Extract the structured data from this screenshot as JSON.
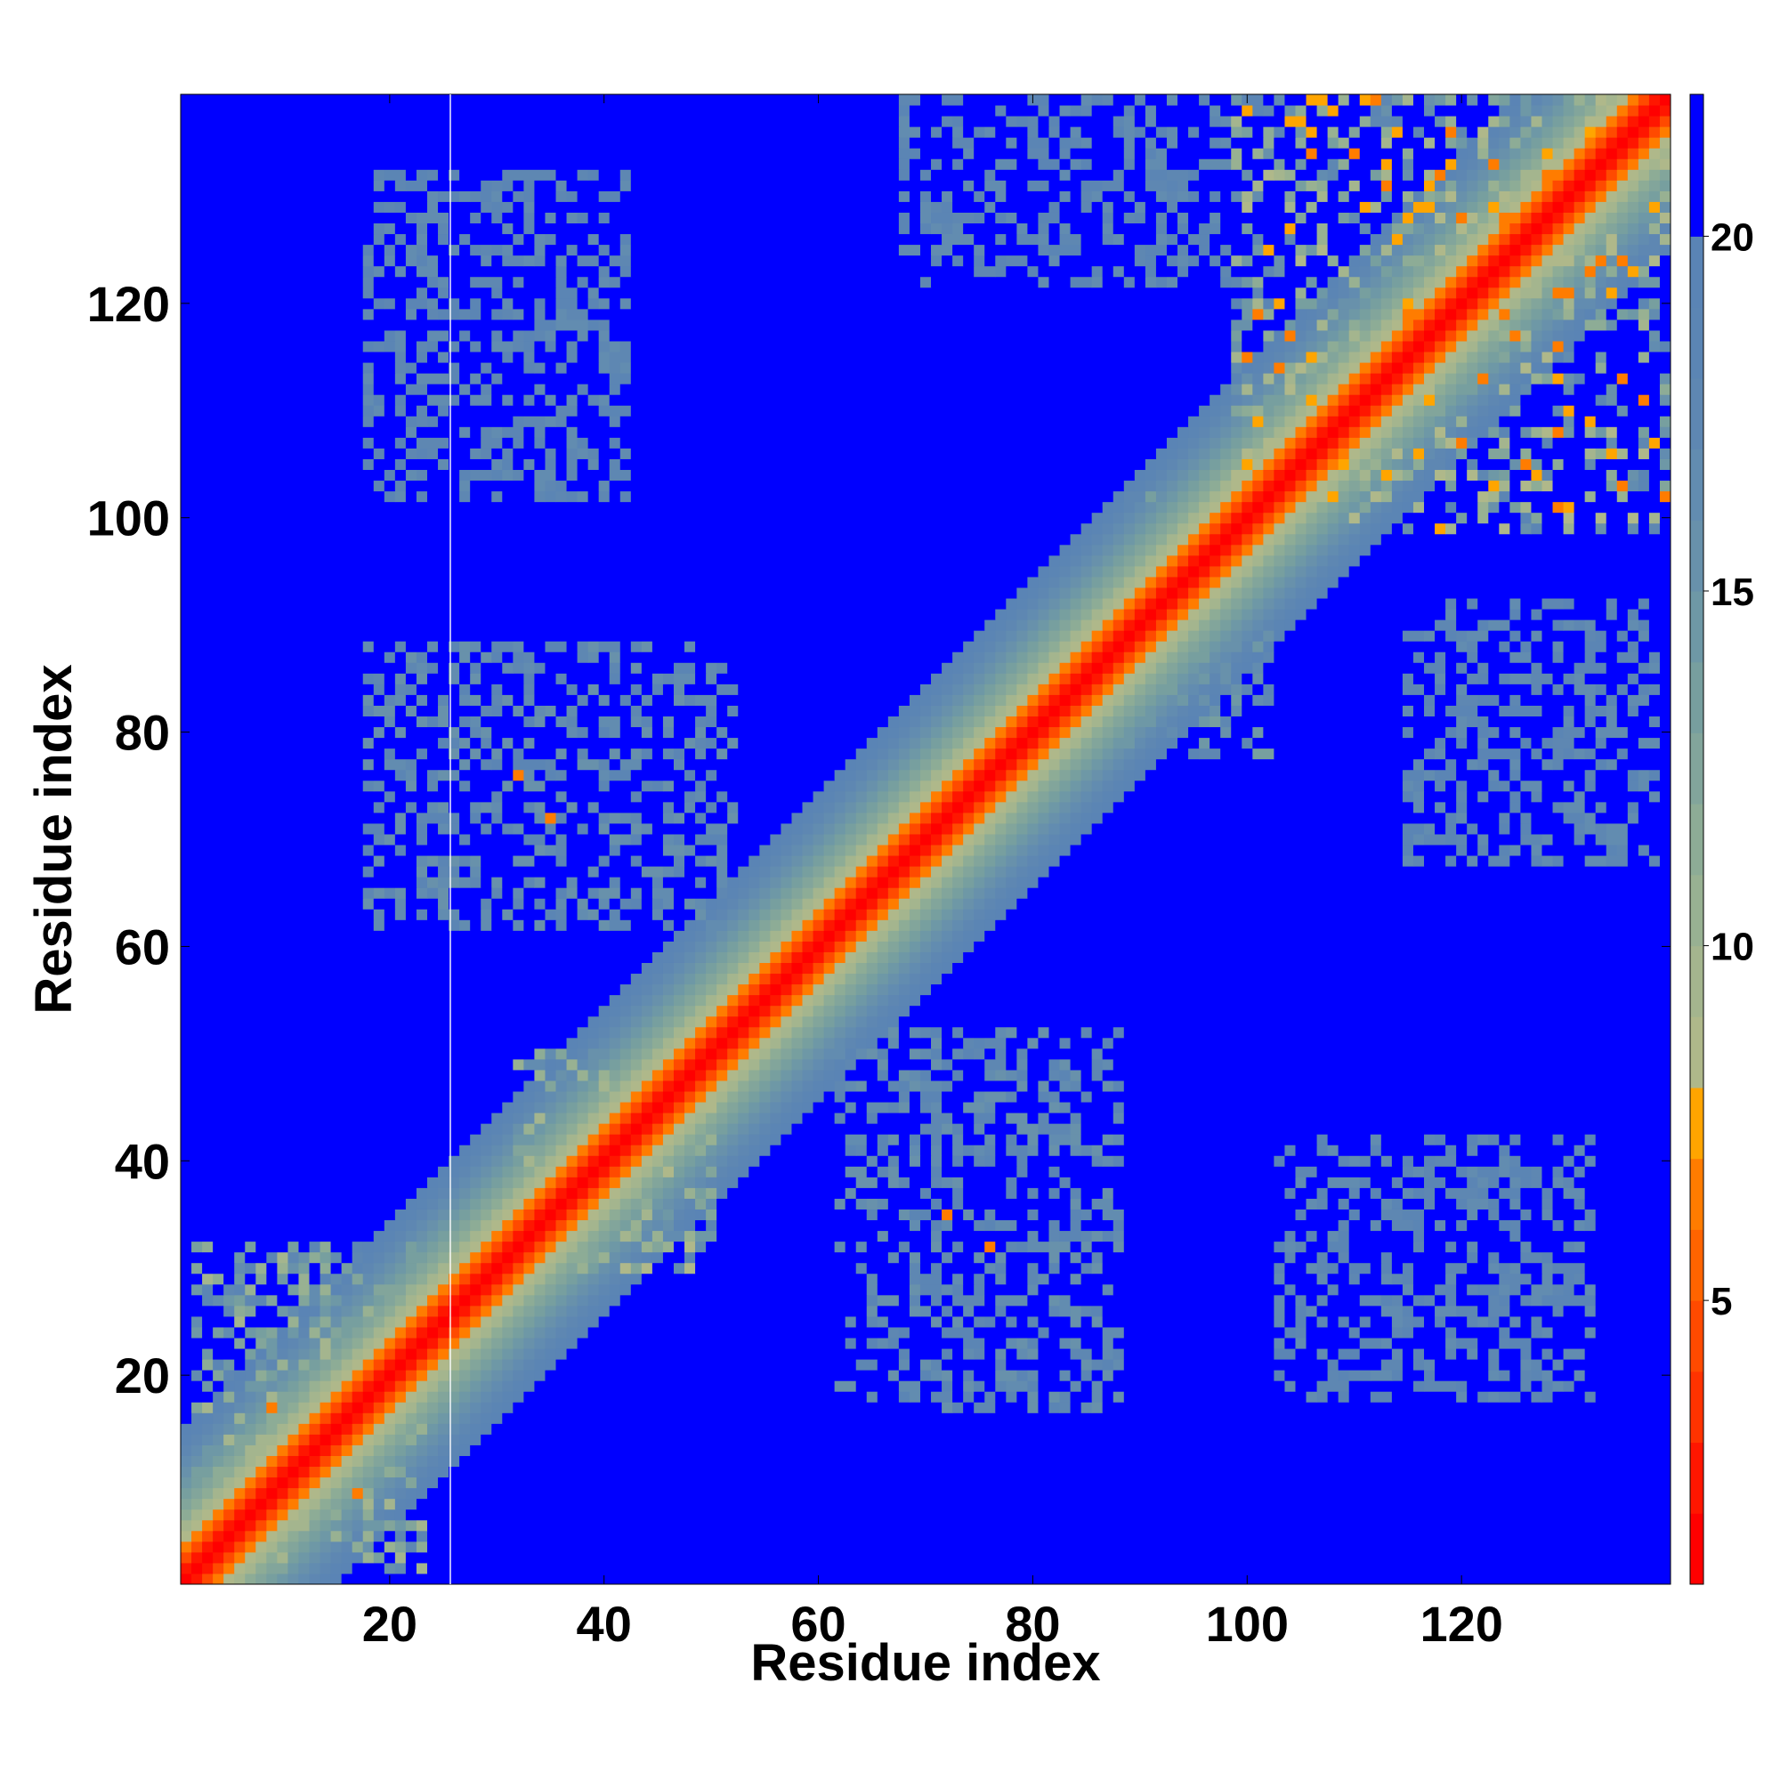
{
  "chart_data": {
    "type": "heatmap",
    "title": "",
    "xlabel": "Residue index",
    "ylabel": "Residue index",
    "xlim": [
      1,
      139
    ],
    "ylim": [
      1,
      139
    ],
    "n_residues": 139,
    "x_ticks": [
      20,
      40,
      60,
      80,
      100,
      120
    ],
    "y_ticks": [
      20,
      40,
      60,
      80,
      100,
      120
    ],
    "grid": false,
    "colorbar": {
      "position": "right",
      "range": [
        1,
        22
      ],
      "ticks": [
        5,
        10,
        15,
        20
      ],
      "bins": [
        {
          "max": 2,
          "color": "#ff0000"
        },
        {
          "max": 3,
          "color": "#ff1600"
        },
        {
          "max": 4,
          "color": "#ff3300"
        },
        {
          "max": 5,
          "color": "#ff4a00"
        },
        {
          "max": 6,
          "color": "#ff6400"
        },
        {
          "max": 7,
          "color": "#ff7c00"
        },
        {
          "max": 8,
          "color": "#ffa500"
        },
        {
          "max": 9,
          "color": "#afb88a"
        },
        {
          "max": 10,
          "color": "#a4b58e"
        },
        {
          "max": 11,
          "color": "#98b192"
        },
        {
          "max": 12,
          "color": "#8dac96"
        },
        {
          "max": 13,
          "color": "#82a59b"
        },
        {
          "max": 14,
          "color": "#779f9f"
        },
        {
          "max": 15,
          "color": "#6e98a6"
        },
        {
          "max": 16,
          "color": "#6891ab"
        },
        {
          "max": 17,
          "color": "#628cb0"
        },
        {
          "max": 18,
          "color": "#5e87b2"
        },
        {
          "max": 19,
          "color": "#5b85b4"
        },
        {
          "max": 20,
          "color": "#5a84b5"
        },
        {
          "max": 22,
          "color": "#0000ff"
        }
      ]
    },
    "diagonal_profile": {
      "description_units": "distance (A) as function of |i-j| near the diagonal",
      "values": [
        1.5,
        3.0,
        5.0,
        7.0,
        8.6,
        10.0,
        11.2,
        12.4,
        13.5,
        14.6,
        15.6,
        16.6,
        17.6,
        18.6,
        19.6
      ]
    },
    "contact_regions": [
      {
        "x": [
          2,
          23
        ],
        "y": [
          2,
          32
        ],
        "min": 9,
        "max": 19
      },
      {
        "x": [
          32,
          50
        ],
        "y": [
          30,
          50
        ],
        "min": 8,
        "max": 19
      },
      {
        "x": [
          62,
          88
        ],
        "y": [
          17,
          52
        ],
        "min": 15,
        "max": 19
      },
      {
        "x": [
          103,
          132
        ],
        "y": [
          18,
          42
        ],
        "min": 16,
        "max": 19
      },
      {
        "x": [
          18,
          52
        ],
        "y": [
          62,
          88
        ],
        "min": 15,
        "max": 19
      },
      {
        "x": [
          88,
          102
        ],
        "y": [
          78,
          102
        ],
        "min": 13,
        "max": 19
      },
      {
        "x": [
          115,
          138
        ],
        "y": [
          68,
          92
        ],
        "min": 16,
        "max": 19
      },
      {
        "x": [
          18,
          42
        ],
        "y": [
          102,
          132
        ],
        "min": 16,
        "max": 19
      },
      {
        "x": [
          68,
          100
        ],
        "y": [
          122,
          139
        ],
        "min": 16,
        "max": 19
      },
      {
        "x": [
          99,
          139
        ],
        "y": [
          99,
          139
        ],
        "min": 6,
        "max": 19
      }
    ],
    "hotspots": [
      {
        "x": 32,
        "y": 76,
        "value": 7
      },
      {
        "x": 35,
        "y": 72,
        "value": 7
      },
      {
        "x": 72,
        "y": 35,
        "value": 7
      },
      {
        "x": 76,
        "y": 32,
        "value": 7
      },
      {
        "x": 9,
        "y": 17,
        "value": 7
      },
      {
        "x": 17,
        "y": 9,
        "value": 7
      }
    ]
  }
}
